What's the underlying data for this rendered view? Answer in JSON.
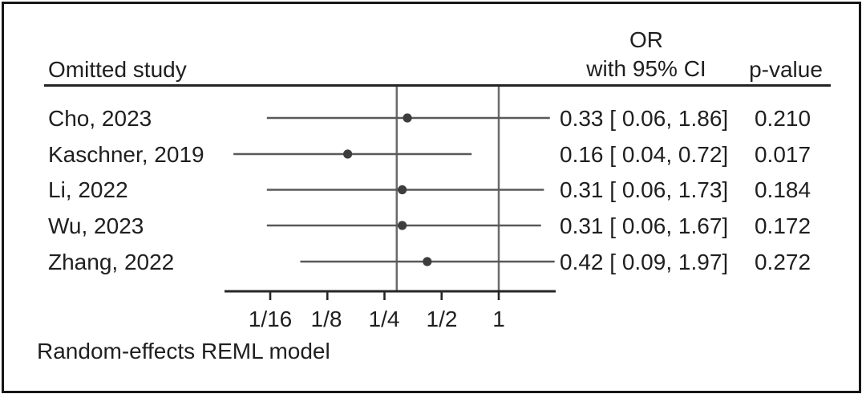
{
  "chart_data": {
    "type": "forest",
    "title": "",
    "column_headers": {
      "study": "Omitted study",
      "effect_line1": "OR",
      "effect_line2": "with 95% CI",
      "p": "p-value"
    },
    "x_axis": {
      "scale": "log2",
      "range": [
        0.036,
        2.0
      ],
      "ticks": [
        {
          "value": 0.0625,
          "label": "1/16"
        },
        {
          "value": 0.125,
          "label": "1/8"
        },
        {
          "value": 0.25,
          "label": "1/4"
        },
        {
          "value": 0.5,
          "label": "1/2"
        },
        {
          "value": 1,
          "label": "1"
        }
      ]
    },
    "reference_lines": [
      {
        "value": 0.29,
        "role": "overall-estimate"
      },
      {
        "value": 1.0,
        "role": "null"
      }
    ],
    "rows": [
      {
        "label": "Cho, 2023",
        "estimate": 0.33,
        "ci_low": 0.06,
        "ci_high": 1.86,
        "effect_text": "0.33 [ 0.06, 1.86]",
        "p_value": "0.210"
      },
      {
        "label": "Kaschner, 2019",
        "estimate": 0.16,
        "ci_low": 0.04,
        "ci_high": 0.72,
        "effect_text": "0.16 [ 0.04, 0.72]",
        "p_value": "0.017"
      },
      {
        "label": "Li, 2022",
        "estimate": 0.31,
        "ci_low": 0.06,
        "ci_high": 1.73,
        "effect_text": "0.31 [ 0.06, 1.73]",
        "p_value": "0.184"
      },
      {
        "label": "Wu, 2023",
        "estimate": 0.31,
        "ci_low": 0.06,
        "ci_high": 1.67,
        "effect_text": "0.31 [ 0.06, 1.67]",
        "p_value": "0.172"
      },
      {
        "label": "Zhang, 2022",
        "estimate": 0.42,
        "ci_low": 0.09,
        "ci_high": 1.97,
        "effect_text": "0.42 [ 0.09, 1.97]",
        "p_value": "0.272"
      }
    ],
    "footnote": "Random-effects REML model",
    "legend_position": "none",
    "grid": false,
    "colors": {
      "text": "#1f1f1f",
      "axis": "#262626",
      "whisker": "#58595b",
      "reference_line": "#6b6b6b",
      "point": "#3d3d3d",
      "frame_border": "#161616",
      "background": "#ffffff"
    }
  }
}
